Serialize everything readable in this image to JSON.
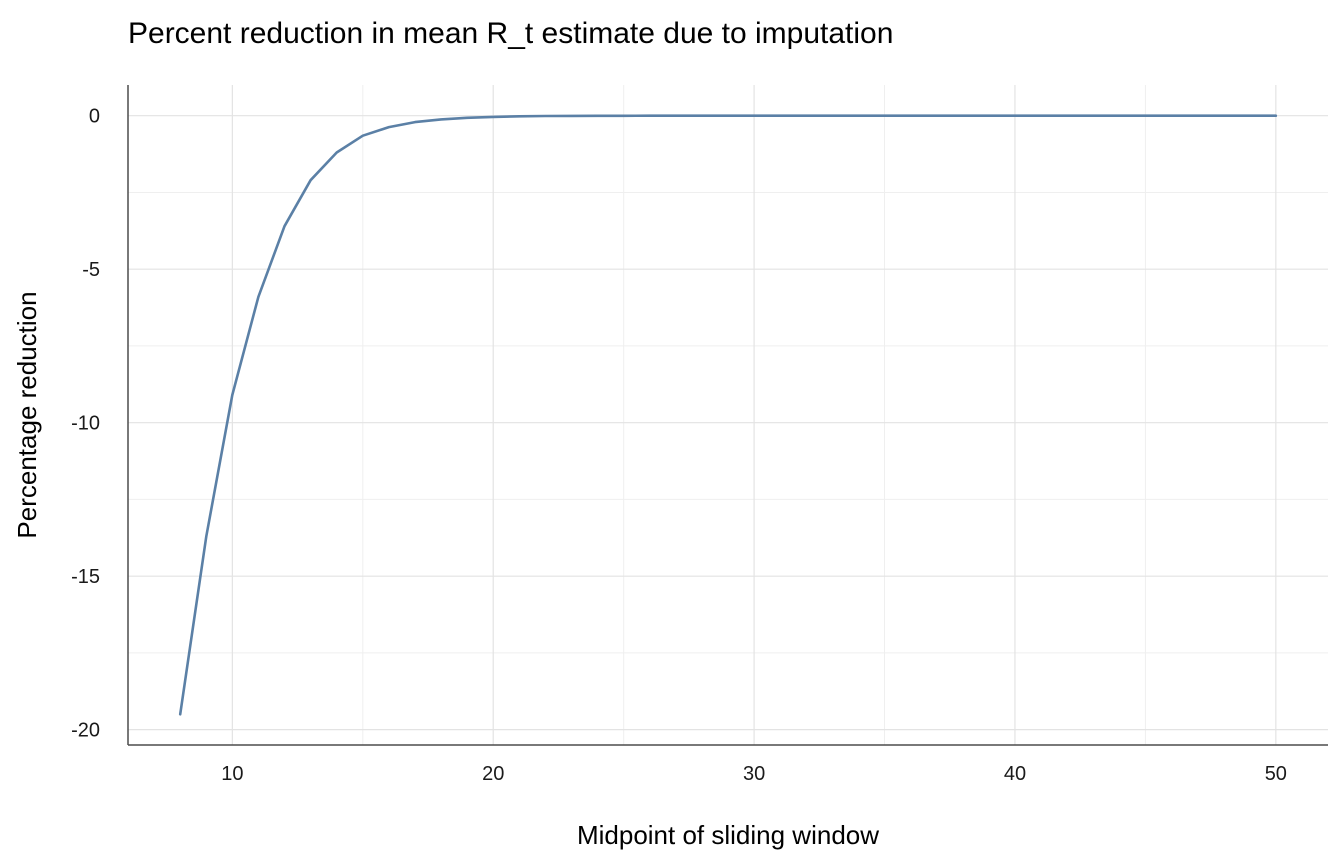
{
  "chart_data": {
    "type": "line",
    "title": "Percent reduction in mean R_t estimate due to imputation",
    "xlabel": "Midpoint of sliding window",
    "ylabel": "Percentage reduction",
    "xlim": [
      6,
      52
    ],
    "ylim": [
      -20.5,
      1
    ],
    "x_ticks": [
      10,
      20,
      30,
      40,
      50
    ],
    "x_tick_labels": [
      "10",
      "20",
      "30",
      "40",
      "50"
    ],
    "y_ticks": [
      0,
      -5,
      -10,
      -15,
      -20
    ],
    "y_tick_labels": [
      "0",
      "-5",
      "-10",
      "-15",
      "-20"
    ],
    "x_minor": [
      15,
      25,
      35,
      45
    ],
    "y_minor": [
      -2.5,
      -7.5,
      -12.5,
      -17.5
    ],
    "grid": true,
    "line_color": "#5b80a6",
    "series": [
      {
        "x": [
          8,
          9,
          10,
          11,
          12,
          13,
          14,
          15,
          16,
          17,
          18,
          19,
          20,
          21,
          22,
          23,
          24,
          25,
          26,
          27,
          28,
          29,
          30,
          31,
          32,
          33,
          34,
          35,
          36,
          37,
          38,
          39,
          40,
          41,
          42,
          43,
          44,
          45,
          46,
          47,
          48,
          49,
          50
        ],
        "values": [
          -19.5,
          -13.7,
          -9.1,
          -5.9,
          -3.6,
          -2.1,
          -1.2,
          -0.65,
          -0.37,
          -0.21,
          -0.12,
          -0.07,
          -0.04,
          -0.02,
          -0.01,
          -0.005,
          -0.003,
          -0.002,
          -0.001,
          -0.001,
          0,
          0,
          0,
          0,
          0,
          0,
          0,
          0,
          0,
          0,
          0,
          0,
          0,
          0,
          0,
          0,
          0,
          0,
          0,
          0,
          0,
          0,
          0
        ]
      }
    ]
  }
}
